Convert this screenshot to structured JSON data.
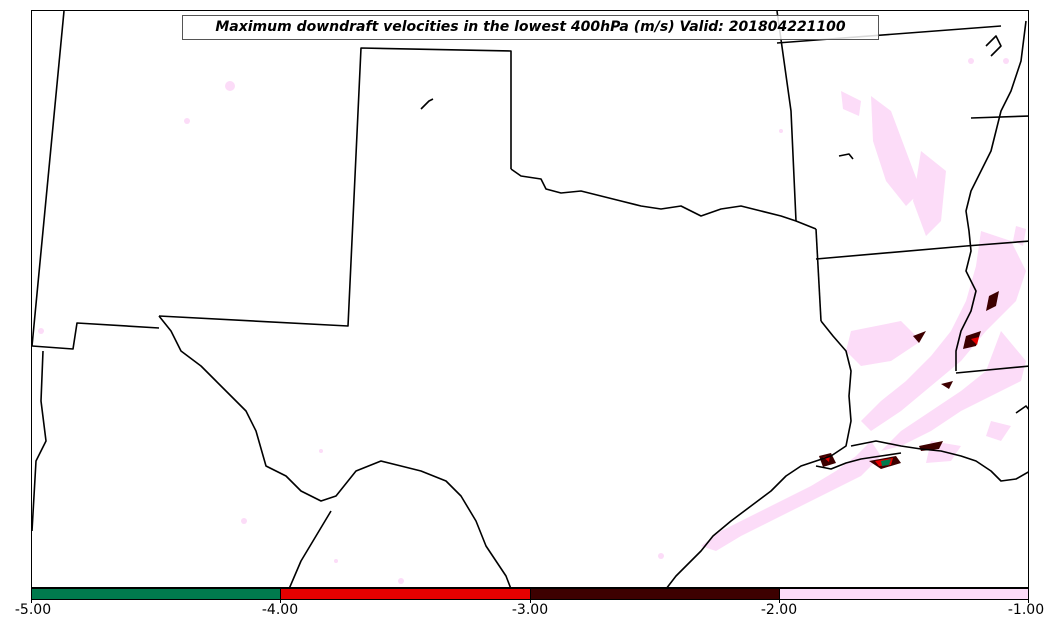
{
  "title": "Maximum downdraft velocities in the lowest 400hPa (m/s) Valid: 201804221100",
  "colorbar": {
    "segments": [
      {
        "color": "#007a4d",
        "range": "-5.00 to -4.00"
      },
      {
        "color": "#e60000",
        "range": "-4.00 to -3.00"
      },
      {
        "color": "#3d0000",
        "range": "-3.00 to -2.00"
      },
      {
        "color": "#fcdcf8",
        "range": "-2.00 to -1.00"
      }
    ],
    "ticks": [
      "-5.00",
      "-4.00",
      "-3.00",
      "-2.00",
      "-1.00"
    ]
  },
  "colors": {
    "light": "#fcdcf8",
    "dark_red": "#3d0000",
    "red": "#e60000",
    "green": "#007a4d",
    "boundary": "#000000"
  }
}
